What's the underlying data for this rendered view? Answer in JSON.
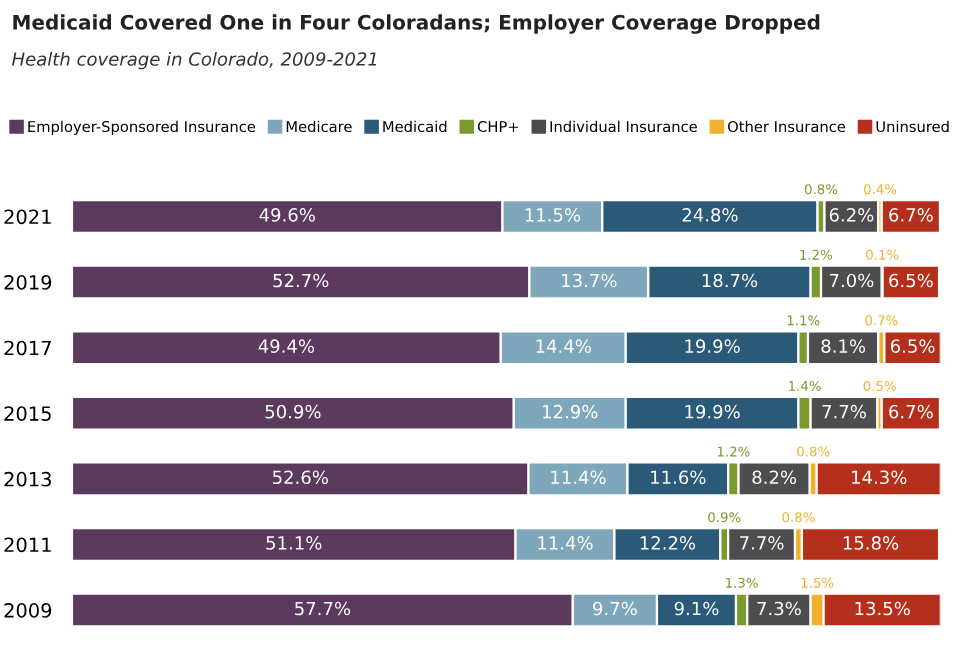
{
  "chart_data": {
    "type": "bar",
    "orientation": "horizontal",
    "stacked": true,
    "title": "Medicaid Covered One in Four Coloradans; Employer Coverage Dropped",
    "subtitle": "Health coverage in Colorado, 2009-2021",
    "categories": [
      "2021",
      "2019",
      "2017",
      "2015",
      "2013",
      "2011",
      "2009"
    ],
    "legend": "top left",
    "grid": false,
    "series": [
      {
        "name": "Employer-Sponsored Insurance",
        "color": "#5b3a5e",
        "values": [
          49.6,
          52.7,
          49.4,
          50.9,
          52.6,
          51.1,
          57.7
        ],
        "value_labels": [
          "49.6%",
          "52.7%",
          "49.4%",
          "50.9%",
          "52.6%",
          "51.1%",
          "57.7%"
        ]
      },
      {
        "name": "Medicare",
        "color": "#7fa7bb",
        "values": [
          11.5,
          13.7,
          14.4,
          12.9,
          11.4,
          11.4,
          9.7
        ],
        "value_labels": [
          "11.5%",
          "13.7%",
          "14.4%",
          "12.9%",
          "11.4%",
          "11.4%",
          "9.7%"
        ]
      },
      {
        "name": "Medicaid",
        "color": "#2a5a78",
        "values": [
          24.8,
          18.7,
          19.9,
          19.9,
          11.6,
          12.2,
          9.1
        ],
        "value_labels": [
          "24.8%",
          "18.7%",
          "19.9%",
          "19.9%",
          "11.6%",
          "12.2%",
          "9.1%"
        ]
      },
      {
        "name": "CHP+",
        "color": "#7a9a2e",
        "values": [
          0.8,
          1.2,
          1.1,
          1.4,
          1.2,
          0.9,
          1.3
        ],
        "value_labels": [
          "0.8%",
          "1.2%",
          "1.1%",
          "1.4%",
          "1.2%",
          "0.9%",
          "1.3%"
        ]
      },
      {
        "name": "Individual Insurance",
        "color": "#4d4d50",
        "values": [
          6.2,
          7.0,
          8.1,
          7.7,
          8.2,
          7.7,
          7.3
        ],
        "value_labels": [
          "6.2%",
          "7.0%",
          "8.1%",
          "7.7%",
          "8.2%",
          "7.7%",
          "7.3%"
        ]
      },
      {
        "name": "Other Insurance",
        "color": "#f2b12c",
        "values": [
          0.4,
          0.1,
          0.7,
          0.5,
          0.8,
          0.8,
          1.5
        ],
        "value_labels": [
          "0.4%",
          "0.1%",
          "0.7%",
          "0.5%",
          "0.8%",
          "0.8%",
          "1.5%"
        ]
      },
      {
        "name": "Uninsured",
        "color": "#b5301c",
        "values": [
          6.7,
          6.5,
          6.5,
          6.7,
          14.3,
          15.8,
          13.5
        ],
        "value_labels": [
          "6.7%",
          "6.5%",
          "6.5%",
          "6.7%",
          "14.3%",
          "15.8%",
          "13.5%"
        ]
      }
    ]
  }
}
